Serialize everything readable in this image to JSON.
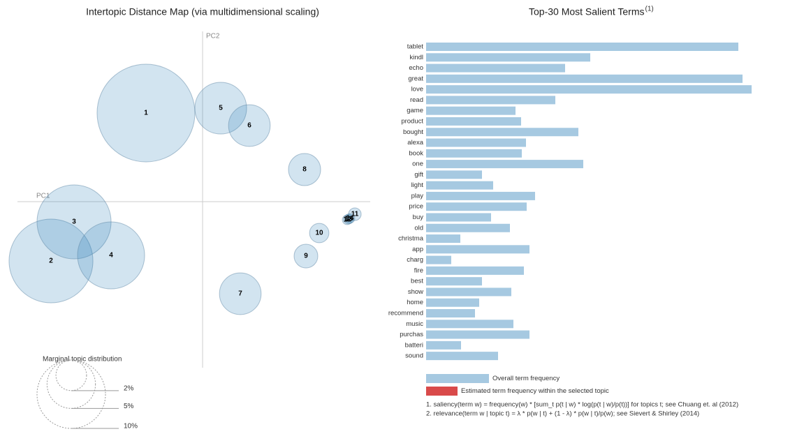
{
  "chart_data": [
    {
      "type": "bubble",
      "title": "Intertopic Distance Map (via multidimensional scaling)",
      "xlabel": "PC1",
      "ylabel": "PC2",
      "labels": [
        "1",
        "2",
        "3",
        "4",
        "5",
        "6",
        "7",
        "8",
        "9",
        "10",
        "11",
        "12",
        "13",
        "14"
      ],
      "x": [
        -0.081,
        -0.217,
        -0.184,
        -0.131,
        0.026,
        0.067,
        0.054,
        0.146,
        0.148,
        0.167,
        0.218,
        0.207,
        0.209,
        0.211
      ],
      "y": [
        0.127,
        -0.085,
        -0.029,
        -0.077,
        0.134,
        0.109,
        -0.132,
        0.046,
        -0.078,
        -0.045,
        -0.018,
        -0.026,
        -0.025,
        -0.024
      ],
      "size": [
        20.4,
        15,
        11.7,
        9.6,
        5.7,
        3.7,
        3.7,
        2.2,
        1.2,
        0.8,
        0.34,
        0.2,
        0.2,
        0.2
      ],
      "color": "#1f77b4",
      "xlim": [
        -0.265,
        0.24
      ],
      "ylim": [
        -0.238,
        0.244
      ],
      "size_legend": {
        "title": "Marginal topic distribution",
        "ticks": [
          {
            "value": 2,
            "label": "2%"
          },
          {
            "value": 5,
            "label": "5%"
          },
          {
            "value": 10,
            "label": "10%"
          }
        ]
      }
    },
    {
      "type": "hbar",
      "title": "Top-30 Most Salient Terms",
      "title_superscript": "(1)",
      "categories": [
        "tablet",
        "kindl",
        "echo",
        "great",
        "love",
        "read",
        "game",
        "product",
        "bought",
        "alexa",
        "book",
        "one",
        "gift",
        "light",
        "play",
        "price",
        "buy",
        "old",
        "christma",
        "app",
        "charg",
        "fire",
        "best",
        "show",
        "home",
        "recommend",
        "music",
        "purchas",
        "batteri",
        "sound"
      ],
      "series": [
        {
          "name": "Overall term frequency",
          "color": "#a6c9e1",
          "values": [
            447,
            235,
            199,
            453,
            466,
            185,
            128,
            136,
            218,
            143,
            137,
            225,
            80,
            96,
            156,
            144,
            93,
            120,
            49,
            148,
            36,
            140,
            80,
            122,
            76,
            70,
            125,
            148,
            50,
            103
          ]
        },
        {
          "name": "Estimated term frequency within the selected topic",
          "color": "#d94a4a",
          "values": [
            null,
            null,
            null,
            null,
            null,
            null,
            null,
            null,
            null,
            null,
            null,
            null,
            null,
            null,
            null,
            null,
            null,
            null,
            null,
            null,
            null,
            null,
            null,
            null,
            null,
            null,
            null,
            null,
            null,
            null
          ]
        }
      ],
      "xlim": [
        0,
        470
      ],
      "notes": [
        "1. saliency(term w) = frequency(w) * [sum_t p(t | w) * log(p(t | w)/p(t))] for topics t; see Chuang et. al (2012)",
        "2. relevance(term w | topic t) = λ * p(w | t) + (1 - λ) * p(w | t)/p(w); see Sievert & Shirley (2014)"
      ]
    }
  ]
}
